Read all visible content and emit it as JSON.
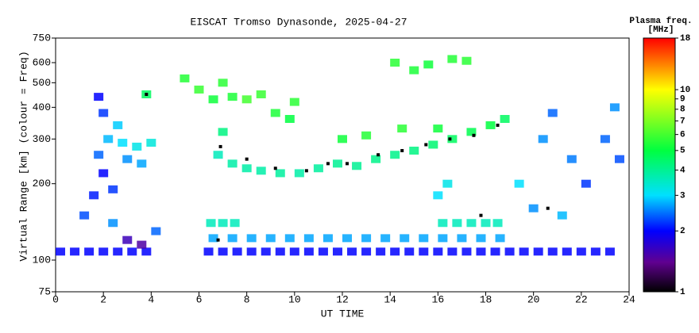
{
  "chart_data": {
    "type": "scatter",
    "title": "EISCAT Tromso Dynasonde, 2025-04-27",
    "xlabel": "UT TIME",
    "ylabel": "Virtual Range [km] (colour = Freq)",
    "colorbar_label": [
      "Plasma freq.",
      "[MHz]"
    ],
    "xlim": [
      0,
      24
    ],
    "xticks": [
      0,
      2,
      4,
      6,
      8,
      10,
      12,
      14,
      16,
      18,
      20,
      22,
      24
    ],
    "ylim": [
      75,
      750
    ],
    "yticks": [
      75,
      100,
      200,
      300,
      400,
      500,
      600,
      750
    ],
    "ylog": true,
    "clim": [
      1,
      18
    ],
    "cticks": [
      1,
      2,
      3,
      4,
      5,
      6,
      7,
      8,
      9,
      10,
      18
    ],
    "clog": true,
    "colorscale": [
      [
        1,
        "#000000"
      ],
      [
        1.4,
        "#600090"
      ],
      [
        2,
        "#0000ff"
      ],
      [
        3,
        "#00e0ff"
      ],
      [
        5,
        "#00ff40"
      ],
      [
        10,
        "#ffff00"
      ],
      [
        18,
        "#ff0000"
      ]
    ],
    "marker_color": "#000000",
    "points": [
      [
        0.2,
        108,
        2
      ],
      [
        0.8,
        108,
        2
      ],
      [
        1.4,
        108,
        2
      ],
      [
        2.0,
        108,
        2
      ],
      [
        2.6,
        108,
        2
      ],
      [
        3.2,
        108,
        2
      ],
      [
        3.8,
        108,
        2
      ],
      [
        6.4,
        108,
        2
      ],
      [
        7.0,
        108,
        2
      ],
      [
        7.6,
        108,
        2
      ],
      [
        8.2,
        108,
        2
      ],
      [
        8.8,
        108,
        2
      ],
      [
        9.4,
        108,
        2
      ],
      [
        10.0,
        108,
        2
      ],
      [
        10.6,
        108,
        2
      ],
      [
        11.2,
        108,
        2
      ],
      [
        11.8,
        108,
        2
      ],
      [
        12.4,
        108,
        2
      ],
      [
        13.0,
        108,
        2
      ],
      [
        13.6,
        108,
        2
      ],
      [
        14.2,
        108,
        2
      ],
      [
        14.8,
        108,
        2
      ],
      [
        15.4,
        108,
        2
      ],
      [
        16.0,
        108,
        2
      ],
      [
        16.6,
        108,
        2
      ],
      [
        17.2,
        108,
        2
      ],
      [
        17.8,
        108,
        2
      ],
      [
        18.4,
        108,
        2
      ],
      [
        19.0,
        108,
        2
      ],
      [
        19.6,
        108,
        2
      ],
      [
        20.2,
        108,
        2
      ],
      [
        20.8,
        108,
        2
      ],
      [
        21.4,
        108,
        2
      ],
      [
        22.0,
        108,
        2
      ],
      [
        22.6,
        108,
        2
      ],
      [
        23.2,
        108,
        2
      ],
      [
        6.6,
        122,
        2.7
      ],
      [
        7.4,
        122,
        2.7
      ],
      [
        8.2,
        122,
        2.7
      ],
      [
        9.0,
        122,
        2.7
      ],
      [
        9.8,
        122,
        2.7
      ],
      [
        10.6,
        122,
        2.7
      ],
      [
        11.4,
        122,
        2.7
      ],
      [
        12.2,
        122,
        2.7
      ],
      [
        13.0,
        122,
        2.7
      ],
      [
        13.8,
        122,
        2.7
      ],
      [
        14.6,
        122,
        2.7
      ],
      [
        15.4,
        122,
        2.7
      ],
      [
        16.2,
        122,
        2.7
      ],
      [
        17.0,
        122,
        2.7
      ],
      [
        17.8,
        122,
        2.7
      ],
      [
        18.6,
        122,
        2.7
      ],
      [
        6.5,
        140,
        3.6
      ],
      [
        7.0,
        140,
        3.6
      ],
      [
        7.5,
        140,
        3.6
      ],
      [
        16.2,
        140,
        3.6
      ],
      [
        16.8,
        140,
        3.6
      ],
      [
        17.4,
        140,
        3.6
      ],
      [
        18.0,
        140,
        3.6
      ],
      [
        18.5,
        140,
        3.6
      ],
      [
        1.2,
        150,
        2.3
      ],
      [
        1.6,
        180,
        2.1
      ],
      [
        2.0,
        220,
        2.0
      ],
      [
        2.4,
        190,
        2.2
      ],
      [
        1.8,
        260,
        2.4
      ],
      [
        2.2,
        300,
        2.8
      ],
      [
        2.8,
        290,
        3.0
      ],
      [
        3.4,
        280,
        3.2
      ],
      [
        4.0,
        290,
        3.3
      ],
      [
        2.0,
        380,
        2.2
      ],
      [
        1.8,
        440,
        2.0
      ],
      [
        2.6,
        340,
        2.9
      ],
      [
        3.0,
        250,
        2.6
      ],
      [
        3.6,
        240,
        2.7
      ],
      [
        2.4,
        140,
        2.6
      ],
      [
        3.0,
        120,
        1.6
      ],
      [
        3.6,
        115,
        1.5
      ],
      [
        4.2,
        130,
        2.4
      ],
      [
        5.4,
        520,
        5.5
      ],
      [
        6.0,
        470,
        5.8
      ],
      [
        6.6,
        430,
        5.2
      ],
      [
        7.0,
        500,
        5.6
      ],
      [
        7.4,
        440,
        5.4
      ],
      [
        8.0,
        430,
        6.0
      ],
      [
        8.6,
        450,
        5.8
      ],
      [
        9.2,
        380,
        5.4
      ],
      [
        9.8,
        360,
        5.0
      ],
      [
        10.0,
        420,
        5.6
      ],
      [
        3.8,
        450,
        4.6
      ],
      [
        6.8,
        260,
        3.6
      ],
      [
        7.4,
        240,
        3.8
      ],
      [
        8.0,
        230,
        3.8
      ],
      [
        8.6,
        225,
        3.8
      ],
      [
        9.4,
        220,
        3.9
      ],
      [
        10.2,
        220,
        3.8
      ],
      [
        11.0,
        230,
        3.9
      ],
      [
        11.8,
        240,
        4.0
      ],
      [
        12.6,
        235,
        4.0
      ],
      [
        13.4,
        250,
        4.1
      ],
      [
        14.2,
        260,
        4.1
      ],
      [
        15.0,
        270,
        4.2
      ],
      [
        15.8,
        285,
        4.4
      ],
      [
        16.6,
        300,
        4.6
      ],
      [
        17.4,
        320,
        4.8
      ],
      [
        18.2,
        340,
        5.0
      ],
      [
        18.8,
        360,
        4.6
      ],
      [
        7.0,
        320,
        4.2
      ],
      [
        12.0,
        300,
        5.2
      ],
      [
        13.0,
        310,
        5.5
      ],
      [
        14.5,
        330,
        5.6
      ],
      [
        16.0,
        330,
        5.2
      ],
      [
        14.2,
        600,
        5.6
      ],
      [
        15.0,
        560,
        5.4
      ],
      [
        15.6,
        590,
        5.2
      ],
      [
        16.6,
        620,
        5.5
      ],
      [
        17.2,
        610,
        5.6
      ],
      [
        19.4,
        200,
        3.0
      ],
      [
        20.0,
        160,
        2.6
      ],
      [
        20.4,
        300,
        2.6
      ],
      [
        20.8,
        380,
        2.4
      ],
      [
        21.2,
        150,
        2.8
      ],
      [
        21.6,
        250,
        2.5
      ],
      [
        22.2,
        200,
        2.2
      ],
      [
        23.0,
        300,
        2.4
      ],
      [
        23.4,
        400,
        2.6
      ],
      [
        23.6,
        250,
        2.3
      ],
      [
        16.0,
        180,
        3.0
      ],
      [
        16.4,
        200,
        3.2
      ]
    ],
    "markers": [
      [
        3.8,
        450
      ],
      [
        6.9,
        280
      ],
      [
        8.0,
        250
      ],
      [
        9.2,
        230
      ],
      [
        10.5,
        225
      ],
      [
        11.4,
        240
      ],
      [
        12.2,
        240
      ],
      [
        13.5,
        260
      ],
      [
        14.5,
        270
      ],
      [
        15.5,
        285
      ],
      [
        16.5,
        300
      ],
      [
        17.5,
        310
      ],
      [
        18.5,
        340
      ],
      [
        6.8,
        120
      ],
      [
        17.8,
        150
      ],
      [
        20.6,
        160
      ]
    ]
  }
}
